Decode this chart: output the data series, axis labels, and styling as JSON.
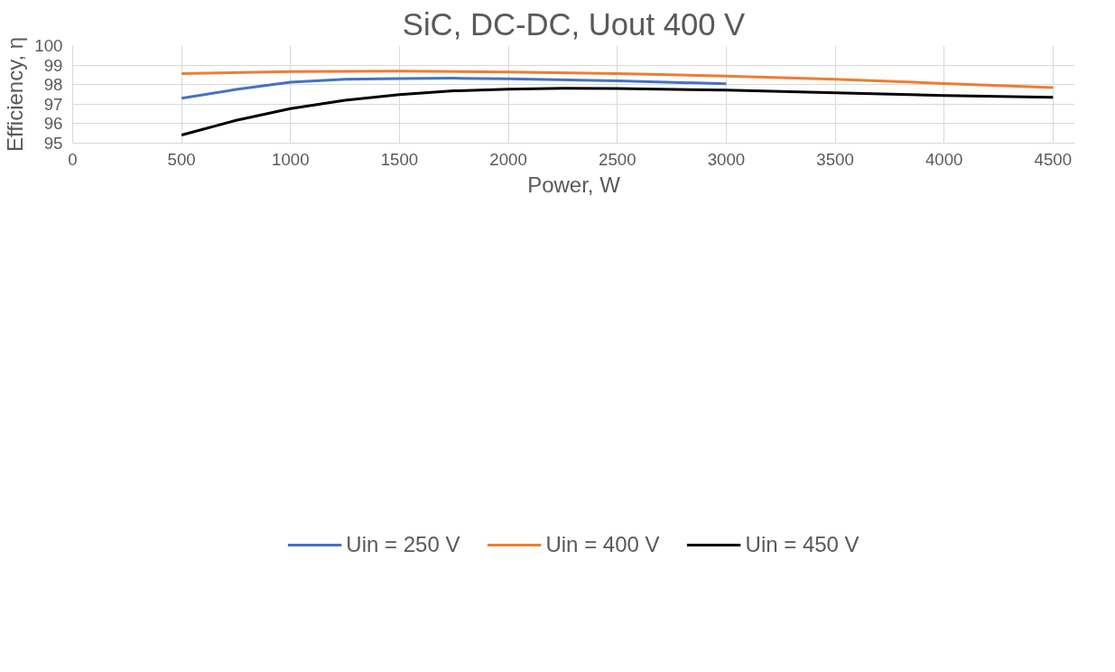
{
  "chart_data": {
    "type": "line",
    "title": "SiC, DC-DC, Uout 400 V",
    "xlabel": "Power, W",
    "ylabel": "Efficiency, η",
    "xlim": [
      0,
      4600
    ],
    "ylim": [
      95,
      100
    ],
    "xticks": [
      0,
      500,
      1000,
      1500,
      2000,
      2500,
      3000,
      3500,
      4000,
      4500
    ],
    "yticks": [
      95,
      96,
      97,
      98,
      99,
      100
    ],
    "grid": true,
    "legend": "bottom",
    "marker": "none",
    "line_style": "solid",
    "series": [
      {
        "name": "Uin = 250 V",
        "color": "#4472c4",
        "x": [
          500,
          750,
          1000,
          1250,
          1500,
          1750,
          2000,
          2500,
          3000
        ],
        "values": [
          97.3,
          97.75,
          98.12,
          98.27,
          98.31,
          98.33,
          98.3,
          98.2,
          98.04
        ]
      },
      {
        "name": "Uin = 400 V",
        "color": "#ed7d31",
        "x": [
          500,
          1000,
          1500,
          2000,
          2500,
          3000,
          3500,
          4000,
          4500
        ],
        "values": [
          98.56,
          98.67,
          98.69,
          98.65,
          98.57,
          98.44,
          98.27,
          98.06,
          97.85
        ]
      },
      {
        "name": "Uin = 450 V",
        "color": "#000000",
        "x": [
          500,
          750,
          1000,
          1250,
          1500,
          1750,
          2000,
          2250,
          2500,
          3000,
          3500,
          4000,
          4500
        ],
        "values": [
          95.42,
          96.17,
          96.77,
          97.2,
          97.49,
          97.68,
          97.77,
          97.81,
          97.8,
          97.72,
          97.58,
          97.44,
          97.35
        ]
      }
    ]
  }
}
